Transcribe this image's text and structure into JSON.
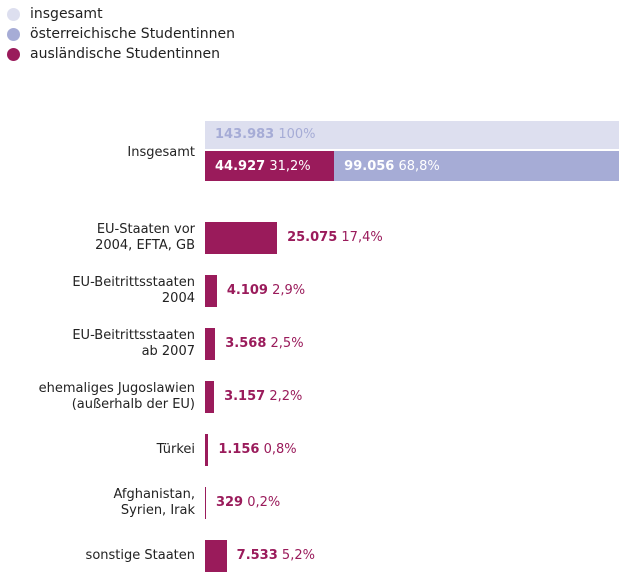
{
  "chart_data": {
    "type": "bar",
    "orientation": "horizontal",
    "categories": [
      "Insgesamt",
      "EU-Staaten vor\n2004, EFTA, GB",
      "EU-Beitrittsstaaten\n2004",
      "EU-Beitrittsstaaten\nab 2007",
      "ehemaliges Jugoslawien\n(außerhalb der EU)",
      "Türkei",
      "Afghanistan,\nSyrien, Irak",
      "sonstige Staaten"
    ],
    "series": [
      {
        "name": "insgesamt",
        "color": "#dddfef",
        "values": [
          143983,
          null,
          null,
          null,
          null,
          null,
          null,
          null
        ],
        "value_labels": [
          "143.983",
          null,
          null,
          null,
          null,
          null,
          null,
          null
        ],
        "percents": [
          100,
          null,
          null,
          null,
          null,
          null,
          null,
          null
        ],
        "percent_labels": [
          "100%",
          null,
          null,
          null,
          null,
          null,
          null,
          null
        ]
      },
      {
        "name": "österreichische Studentinnen",
        "color": "#a6acd6",
        "values": [
          99056,
          null,
          null,
          null,
          null,
          null,
          null,
          null
        ],
        "value_labels": [
          "99.056",
          null,
          null,
          null,
          null,
          null,
          null,
          null
        ],
        "percents": [
          68.8,
          null,
          null,
          null,
          null,
          null,
          null,
          null
        ],
        "percent_labels": [
          "68,8%",
          null,
          null,
          null,
          null,
          null,
          null,
          null
        ]
      },
      {
        "name": "ausländische Studentinnen",
        "color": "#9a1b5b",
        "values": [
          44927,
          25075,
          4109,
          3568,
          3157,
          1156,
          329,
          7533
        ],
        "value_labels": [
          "44.927",
          "25.075",
          "4.109",
          "3.568",
          "3.157",
          "1.156",
          "329",
          "7.533"
        ],
        "percents": [
          31.2,
          17.4,
          2.9,
          2.5,
          2.2,
          0.8,
          0.2,
          5.2
        ],
        "percent_labels": [
          "31,2%",
          "17,4%",
          "2,9%",
          "2,5%",
          "2,2%",
          "0,8%",
          "0,2%",
          "5,2%"
        ]
      }
    ]
  }
}
